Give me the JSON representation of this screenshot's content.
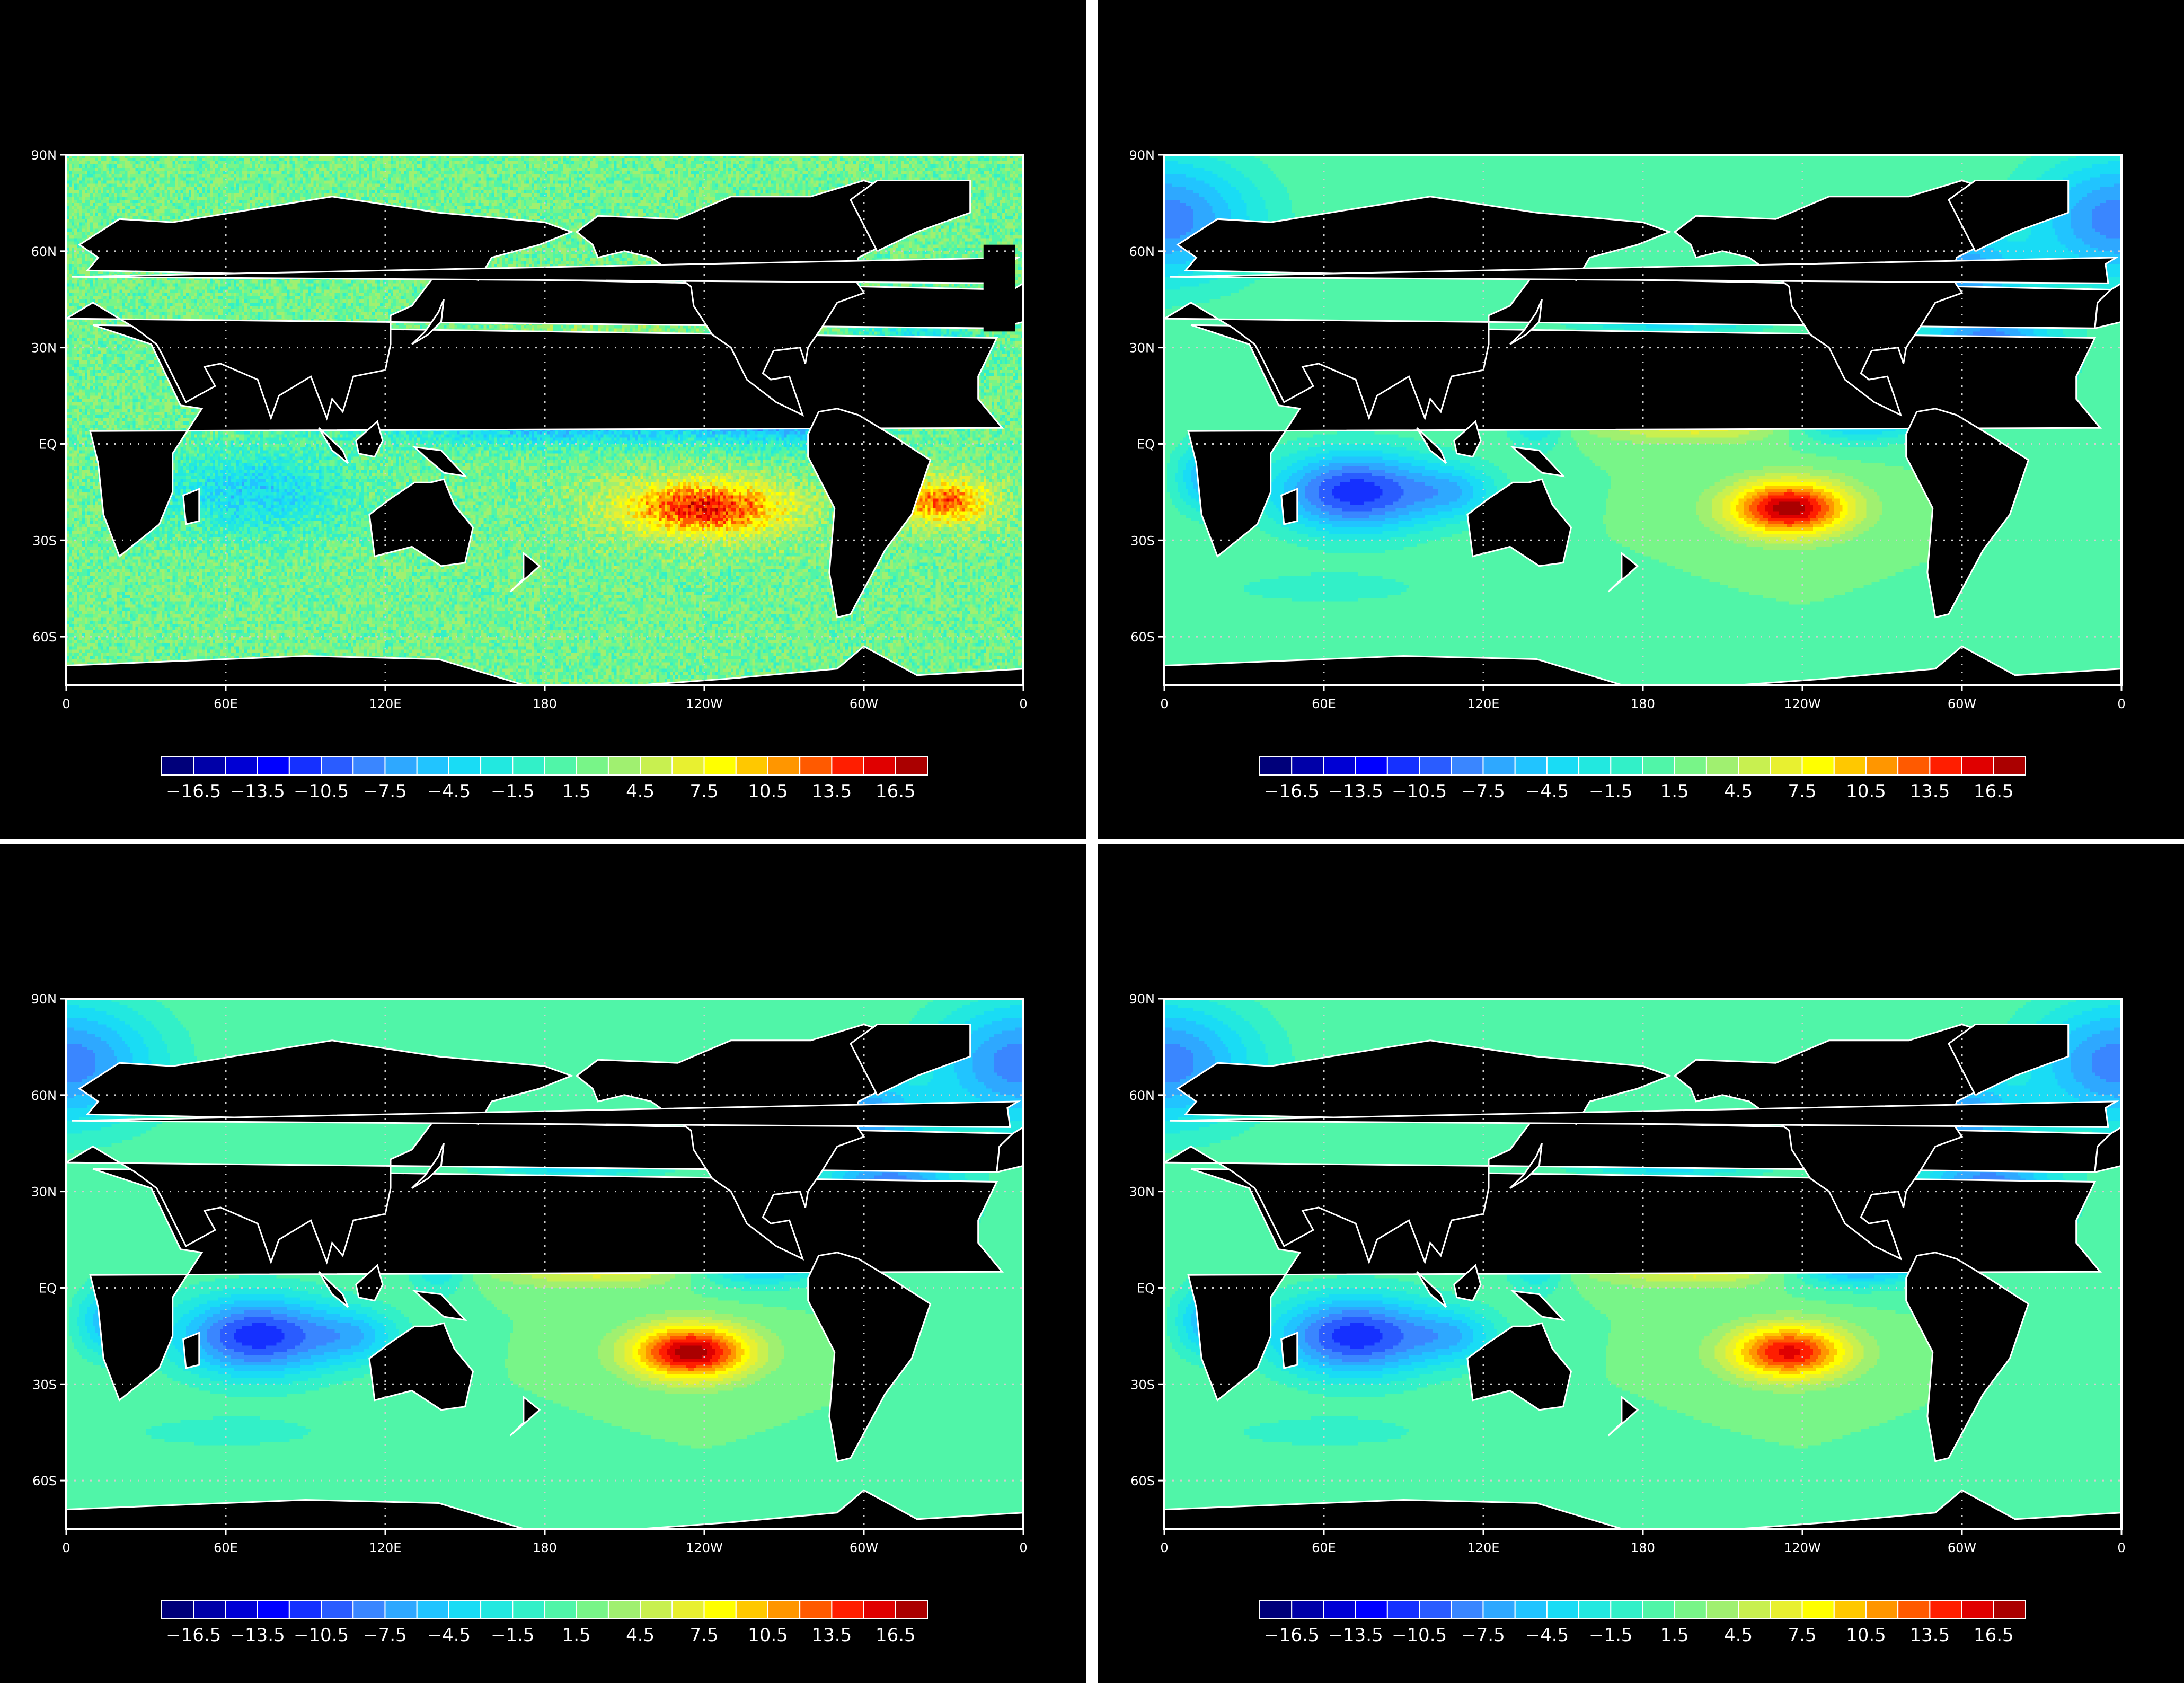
{
  "axes": {
    "lat_ticks": [
      "90N",
      "60N",
      "30N",
      "EQ",
      "30S",
      "60S"
    ],
    "lon_ticks": [
      "0",
      "60E",
      "120E",
      "180",
      "120W",
      "60W",
      "0"
    ]
  },
  "colorbar": {
    "labels": [
      "−16.5",
      "−13.5",
      "−10.5",
      "−7.5",
      "−4.5",
      "−1.5",
      "1.5",
      "4.5",
      "7.5",
      "10.5",
      "13.5",
      "16.5"
    ],
    "colors": [
      "#00007a",
      "#0000a8",
      "#0000d4",
      "#0000ff",
      "#1530ff",
      "#2a5cff",
      "#3a86ff",
      "#2ea8ff",
      "#21c4ff",
      "#19dcf5",
      "#22e8e0",
      "#32f0c8",
      "#50f5a8",
      "#78f588",
      "#a0f070",
      "#c8f050",
      "#e8f030",
      "#ffff00",
      "#ffc800",
      "#ff9600",
      "#ff5a00",
      "#ff1e00",
      "#e00000",
      "#aa0000"
    ],
    "range": [
      -18,
      18
    ]
  },
  "panels": [
    {
      "id": "top-left"
    },
    {
      "id": "top-right"
    },
    {
      "id": "bottom-left"
    },
    {
      "id": "bottom-right"
    }
  ],
  "palette": {
    "land": "#000000",
    "coastline": "#ffffff",
    "gridline": "#cfcfcf",
    "frame": "#ffffff"
  }
}
